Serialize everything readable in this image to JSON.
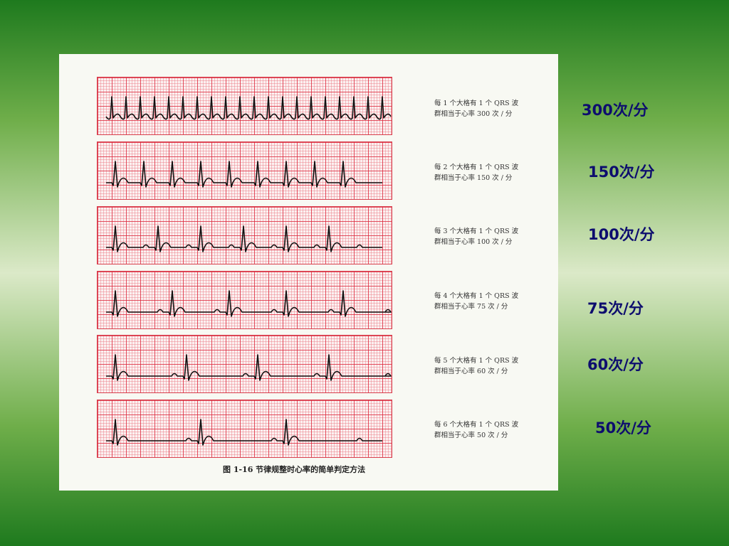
{
  "rows": [
    {
      "caption_line1": "每 1 个大格有 1 个 QRS 波",
      "caption_line2": "群相当于心率 300 次 / 分",
      "rate_label": "300次/分",
      "big_boxes_per_qrs": 1
    },
    {
      "caption_line1": "每 2 个大格有 1 个 QRS 波",
      "caption_line2": "群相当于心率 150 次 / 分",
      "rate_label": "150次/分",
      "big_boxes_per_qrs": 2
    },
    {
      "caption_line1": "每 3 个大格有 1 个 QRS 波",
      "caption_line2": "群相当于心率 100 次 / 分",
      "rate_label": "100次/分",
      "big_boxes_per_qrs": 3
    },
    {
      "caption_line1": "每 4 个大格有 1 个 QRS 波",
      "caption_line2": "群相当于心率 75 次 / 分",
      "rate_label": "75次/分",
      "big_boxes_per_qrs": 4
    },
    {
      "caption_line1": "每 5 个大格有 1 个 QRS 波",
      "caption_line2": "群相当于心率 60 次 / 分",
      "rate_label": "60次/分",
      "big_boxes_per_qrs": 5
    },
    {
      "caption_line1": "每 6 个大格有 1 个 QRS 波",
      "caption_line2": "群相当于心率 50 次 / 分",
      "rate_label": "50次/分",
      "big_boxes_per_qrs": 6
    }
  ],
  "figure_caption": "图 1-16    节律规整时心率的简单判定方法",
  "colors": {
    "grid": "#dc283c",
    "trace": "#111111",
    "rate_text": "#0d0d6e"
  }
}
